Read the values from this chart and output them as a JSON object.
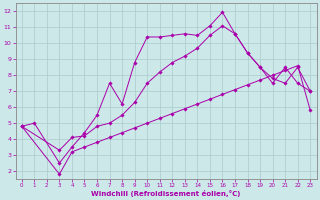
{
  "xlabel": "Windchill (Refroidissement éolien,°C)",
  "bg_color": "#cce8e8",
  "line_color": "#aa00aa",
  "grid_color": "#aacccc",
  "spine_color": "#888888",
  "xlim": [
    -0.5,
    23.5
  ],
  "ylim": [
    1.5,
    12.5
  ],
  "yticks": [
    2,
    3,
    4,
    5,
    6,
    7,
    8,
    9,
    10,
    11,
    12
  ],
  "xticks": [
    0,
    1,
    2,
    3,
    4,
    5,
    6,
    7,
    8,
    9,
    10,
    11,
    12,
    13,
    14,
    15,
    16,
    17,
    18,
    19,
    20,
    21,
    22,
    23
  ],
  "line1_x": [
    0,
    1,
    3,
    4,
    5,
    6,
    7,
    8,
    9,
    10,
    11,
    12,
    13,
    14,
    15,
    16,
    17,
    18,
    19,
    20,
    21,
    22,
    23
  ],
  "line1_y": [
    4.8,
    5.0,
    2.5,
    3.5,
    4.4,
    5.5,
    7.5,
    6.2,
    8.8,
    10.4,
    10.4,
    10.5,
    10.6,
    10.5,
    11.1,
    11.95,
    10.6,
    9.4,
    8.5,
    7.5,
    8.5,
    7.5,
    7.0
  ],
  "line2_x": [
    0,
    3,
    4,
    5,
    6,
    7,
    8,
    9,
    10,
    11,
    12,
    13,
    14,
    15,
    16,
    17,
    18,
    19,
    20,
    21,
    22,
    23
  ],
  "line2_y": [
    4.8,
    3.3,
    4.1,
    4.2,
    4.8,
    5.0,
    5.5,
    6.3,
    7.5,
    8.2,
    8.8,
    9.2,
    9.7,
    10.5,
    11.1,
    10.6,
    9.4,
    8.5,
    7.8,
    7.5,
    8.5,
    7.0
  ],
  "line3_x": [
    0,
    3,
    4,
    5,
    6,
    7,
    8,
    9,
    10,
    11,
    12,
    13,
    14,
    15,
    16,
    17,
    18,
    19,
    20,
    21,
    22,
    23
  ],
  "line3_y": [
    4.8,
    1.8,
    3.2,
    3.5,
    3.8,
    4.1,
    4.4,
    4.7,
    5.0,
    5.3,
    5.6,
    5.9,
    6.2,
    6.5,
    6.8,
    7.1,
    7.4,
    7.7,
    8.0,
    8.3,
    8.6,
    5.8
  ]
}
